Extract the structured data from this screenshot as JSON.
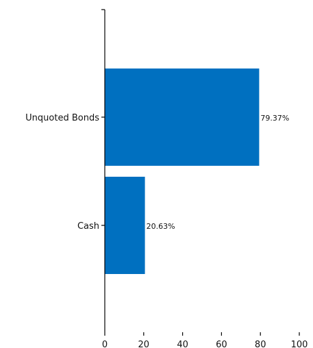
{
  "chart_data": {
    "type": "bar",
    "orientation": "horizontal",
    "categories": [
      "Unquoted Bonds",
      "Cash"
    ],
    "values": [
      79.37,
      20.63
    ],
    "data_labels": [
      "79.37%",
      "20.63%"
    ],
    "xlim": [
      0,
      100
    ],
    "x_ticks": [
      0,
      20,
      40,
      60,
      80,
      100
    ],
    "x_tick_labels": [
      "0",
      "20",
      "40",
      "60",
      "80",
      "100"
    ],
    "grid": false,
    "legend": "none",
    "bar_color": "#0070C0"
  }
}
